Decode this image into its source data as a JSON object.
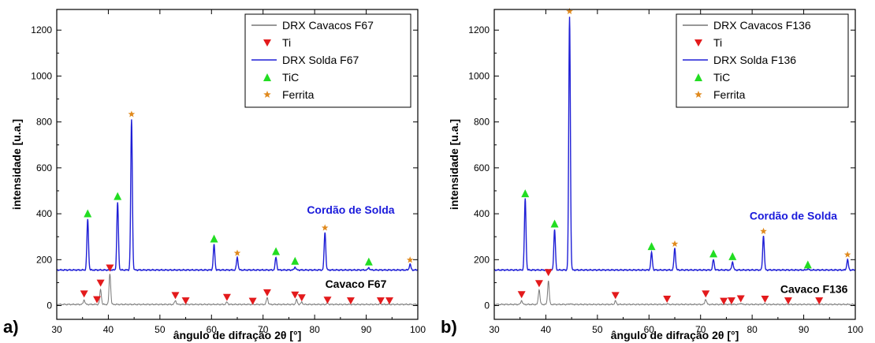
{
  "chart_data": [
    {
      "panel_label": "a)",
      "type": "line",
      "xlabel": "ângulo de difração 2θ [°]",
      "ylabel": "intensidade [u.a.]",
      "xlim": [
        30,
        100
      ],
      "ylim": [
        -60,
        1290
      ],
      "xticks": [
        30,
        40,
        50,
        60,
        70,
        80,
        90,
        100
      ],
      "yticks": [
        0,
        200,
        400,
        600,
        800,
        1000,
        1200
      ],
      "grid": false,
      "legend": {
        "placement": "top-right",
        "entries": [
          {
            "label": "DRX Cavacos F67",
            "kind": "line",
            "color": "#777777"
          },
          {
            "label": "Ti",
            "kind": "triangle-down",
            "color": "#e31a1c"
          },
          {
            "label": "DRX Solda F67",
            "kind": "line",
            "color": "#1f1fd6"
          },
          {
            "label": "TiC",
            "kind": "triangle-up",
            "color": "#22dd22"
          },
          {
            "label": "Ferrita",
            "kind": "star",
            "color": "#e08a1e"
          }
        ]
      },
      "annotations": [
        {
          "text": "Cordão de Solda",
          "x": 87,
          "y": 400,
          "color": "#1a1adb"
        },
        {
          "text": "Cavaco F67",
          "x": 88,
          "y": 78,
          "color": "#000000"
        }
      ],
      "series": [
        {
          "name": "DRX Solda F67",
          "color": "#1f1fd6",
          "baseline": 155,
          "peaks": [
            [
              36.0,
              375
            ],
            [
              41.8,
              450
            ],
            [
              44.5,
              810
            ],
            [
              60.5,
              265
            ],
            [
              65.0,
              210
            ],
            [
              72.5,
              210
            ],
            [
              76.2,
              168
            ],
            [
              82.0,
              320
            ],
            [
              90.5,
              165
            ],
            [
              98.5,
              180
            ]
          ]
        },
        {
          "name": "DRX Cavacos F67",
          "color": "#777777",
          "baseline": 5,
          "peaks": [
            [
              35.3,
              25
            ],
            [
              38.5,
              70
            ],
            [
              40.3,
              140
            ],
            [
              53.0,
              22
            ],
            [
              63.0,
              15
            ],
            [
              70.8,
              35
            ],
            [
              76.5,
              25
            ],
            [
              77.5,
              15
            ],
            [
              82.5,
              10
            ],
            [
              92.8,
              8
            ]
          ]
        }
      ],
      "markers": {
        "Ti": [
          [
            35.3,
            35
          ],
          [
            37.8,
            10
          ],
          [
            38.5,
            82
          ],
          [
            40.3,
            148
          ],
          [
            53.0,
            28
          ],
          [
            55.0,
            5
          ],
          [
            63.0,
            20
          ],
          [
            68.0,
            3
          ],
          [
            70.8,
            40
          ],
          [
            76.2,
            30
          ],
          [
            77.5,
            18
          ],
          [
            82.5,
            8
          ],
          [
            87.0,
            5
          ],
          [
            92.8,
            5
          ],
          [
            94.5,
            5
          ]
        ],
        "TiC": [
          [
            36.0,
            385
          ],
          [
            41.8,
            460
          ],
          [
            60.5,
            275
          ],
          [
            72.5,
            220
          ],
          [
            76.2,
            178
          ],
          [
            90.5,
            175
          ]
        ],
        "Ferrita": [
          [
            44.5,
            820
          ],
          [
            65.0,
            215
          ],
          [
            82.0,
            325
          ],
          [
            98.5,
            185
          ]
        ]
      }
    },
    {
      "panel_label": "b)",
      "type": "line",
      "xlabel": "ângulo de difração 2θ [°]",
      "ylabel": "intensidade [u.a.]",
      "xlim": [
        30,
        100
      ],
      "ylim": [
        -60,
        1290
      ],
      "xticks": [
        30,
        40,
        50,
        60,
        70,
        80,
        90,
        100
      ],
      "yticks": [
        0,
        200,
        400,
        600,
        800,
        1000,
        1200
      ],
      "grid": false,
      "legend": {
        "placement": "top-right",
        "entries": [
          {
            "label": "DRX Cavacos F136",
            "kind": "line",
            "color": "#777777"
          },
          {
            "label": "Ti",
            "kind": "triangle-down",
            "color": "#e31a1c"
          },
          {
            "label": "DRX Solda F136",
            "kind": "line",
            "color": "#1f1fd6"
          },
          {
            "label": "TiC",
            "kind": "triangle-up",
            "color": "#22dd22"
          },
          {
            "label": "Ferrita",
            "kind": "star",
            "color": "#e08a1e"
          }
        ]
      },
      "annotations": [
        {
          "text": "Cordão de Solda",
          "x": 88,
          "y": 375,
          "color": "#1a1adb"
        },
        {
          "text": "Cavaco F136",
          "x": 92,
          "y": 55,
          "color": "#000000"
        }
      ],
      "series": [
        {
          "name": "DRX Solda F136",
          "color": "#1f1fd6",
          "baseline": 155,
          "peaks": [
            [
              36.0,
              465
            ],
            [
              41.7,
              330
            ],
            [
              44.6,
              1260
            ],
            [
              60.5,
              230
            ],
            [
              65.0,
              250
            ],
            [
              72.5,
              200
            ],
            [
              76.2,
              190
            ],
            [
              82.2,
              305
            ],
            [
              90.8,
              160
            ],
            [
              98.5,
              200
            ]
          ]
        },
        {
          "name": "DRX Cavacos F136",
          "color": "#777777",
          "baseline": 5,
          "peaks": [
            [
              35.3,
              22
            ],
            [
              38.7,
              70
            ],
            [
              40.5,
              108
            ],
            [
              44.7,
              8
            ],
            [
              53.5,
              20
            ],
            [
              63.5,
              8
            ],
            [
              71.0,
              28
            ],
            [
              74.8,
              5
            ],
            [
              77.8,
              10
            ],
            [
              82.5,
              8
            ],
            [
              87.0,
              6
            ],
            [
              93.0,
              6
            ]
          ]
        }
      ],
      "markers": {
        "Ti": [
          [
            35.3,
            32
          ],
          [
            38.7,
            80
          ],
          [
            40.5,
            128
          ],
          [
            53.5,
            28
          ],
          [
            63.5,
            12
          ],
          [
            71.0,
            35
          ],
          [
            74.5,
            3
          ],
          [
            76.0,
            5
          ],
          [
            77.8,
            14
          ],
          [
            82.5,
            12
          ],
          [
            87.0,
            5
          ],
          [
            93.0,
            5
          ]
        ],
        "TiC": [
          [
            36.0,
            472
          ],
          [
            41.7,
            340
          ],
          [
            60.5,
            242
          ],
          [
            72.5,
            210
          ],
          [
            76.2,
            198
          ],
          [
            90.8,
            162
          ]
        ],
        "Ferrita": [
          [
            44.6,
            1268
          ],
          [
            65.0,
            255
          ],
          [
            82.2,
            310
          ],
          [
            98.5,
            208
          ]
        ]
      }
    }
  ]
}
